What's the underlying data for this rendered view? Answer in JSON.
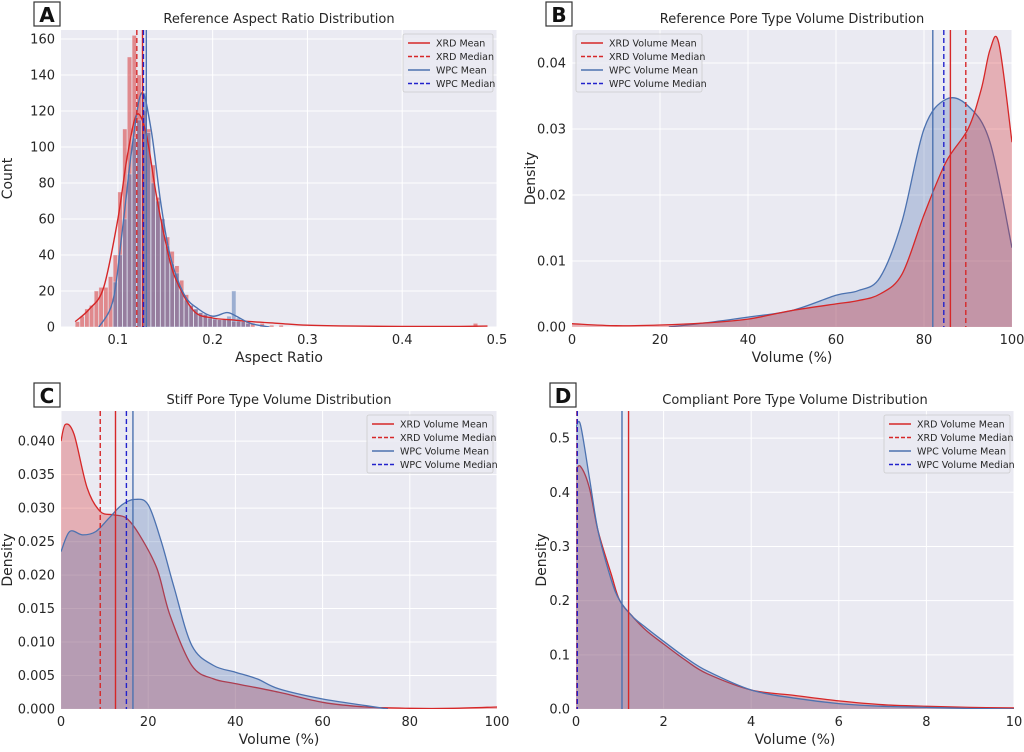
{
  "figure": {
    "panels": [
      {
        "letter": "A",
        "title": "Reference Aspect Ratio Distribution",
        "xlabel": "Aspect Ratio",
        "ylabel": "Count",
        "x_ticks": [
          "0.1",
          "0.2",
          "0.3",
          "0.4",
          "0.5"
        ],
        "y_ticks": [
          "0",
          "20",
          "40",
          "60",
          "80",
          "100",
          "120",
          "140",
          "160"
        ],
        "legend": [
          "XRD Mean",
          "XRD Median",
          "WPC Mean",
          "WPC Median"
        ]
      },
      {
        "letter": "B",
        "title": "Reference Pore Type Volume Distribution",
        "xlabel": "Volume (%)",
        "ylabel": "Density",
        "x_ticks": [
          "0",
          "20",
          "40",
          "60",
          "80",
          "100"
        ],
        "y_ticks": [
          "0.00",
          "0.01",
          "0.02",
          "0.03",
          "0.04"
        ],
        "legend": [
          "XRD Volume Mean",
          "XRD Volume Median",
          "WPC Volume Mean",
          "WPC Volume Median"
        ]
      },
      {
        "letter": "C",
        "title": "Stiff Pore Type Volume Distribution",
        "xlabel": "Volume (%)",
        "ylabel": "Density",
        "x_ticks": [
          "0",
          "20",
          "40",
          "60",
          "80",
          "100"
        ],
        "y_ticks": [
          "0.000",
          "0.005",
          "0.010",
          "0.015",
          "0.020",
          "0.025",
          "0.030",
          "0.035",
          "0.040"
        ],
        "legend": [
          "XRD Volume Mean",
          "XRD Volume Median",
          "WPC Volume Mean",
          "WPC Volume Median"
        ]
      },
      {
        "letter": "D",
        "title": "Compliant Pore Type Volume Distribution",
        "xlabel": "Volume (%)",
        "ylabel": "Density",
        "x_ticks": [
          "0",
          "2",
          "4",
          "6",
          "8",
          "10"
        ],
        "y_ticks": [
          "0.0",
          "0.1",
          "0.2",
          "0.3",
          "0.4",
          "0.5"
        ],
        "legend": [
          "XRD Volume Mean",
          "XRD Volume Median",
          "WPC Volume Mean",
          "WPC Volume Median"
        ]
      }
    ]
  },
  "chart_data": [
    {
      "type": "histogram",
      "panel": "A",
      "title": "Reference Aspect Ratio Distribution",
      "xlabel": "Aspect Ratio",
      "ylabel": "Count",
      "xlim": [
        0.04,
        0.5
      ],
      "ylim": [
        0,
        165
      ],
      "grid": true,
      "legend_position": "top-right",
      "colors": {
        "XRD": "#d62728",
        "WPC": "#4c72b0",
        "background": "#eaeaf2"
      },
      "series": [
        {
          "name": "XRD",
          "bin_width": 0.005,
          "bin_starts": [
            0.055,
            0.06,
            0.065,
            0.07,
            0.075,
            0.08,
            0.085,
            0.09,
            0.095,
            0.1,
            0.105,
            0.11,
            0.115,
            0.12,
            0.125,
            0.13,
            0.135,
            0.14,
            0.145,
            0.15,
            0.155,
            0.16,
            0.165,
            0.17,
            0.175,
            0.18,
            0.185,
            0.19,
            0.195,
            0.2,
            0.205,
            0.21,
            0.215,
            0.22,
            0.225,
            0.23,
            0.235,
            0.24,
            0.25,
            0.26,
            0.27,
            0.475
          ],
          "counts": [
            3,
            6,
            10,
            12,
            20,
            22,
            22,
            28,
            40,
            75,
            110,
            150,
            162,
            140,
            120,
            110,
            90,
            72,
            60,
            50,
            42,
            34,
            26,
            18,
            12,
            10,
            8,
            7,
            6,
            4,
            4,
            4,
            4,
            3,
            3,
            4,
            3,
            2,
            2,
            1,
            1,
            2
          ],
          "kde_x": [
            0.055,
            0.07,
            0.085,
            0.1,
            0.11,
            0.12,
            0.13,
            0.14,
            0.15,
            0.16,
            0.18,
            0.2,
            0.22,
            0.24,
            0.27,
            0.3,
            0.35,
            0.4,
            0.45,
            0.49
          ],
          "kde_y": [
            3,
            10,
            22,
            60,
            95,
            118,
            107,
            75,
            48,
            28,
            9,
            5,
            4,
            3,
            2,
            1,
            0.5,
            0.3,
            0.3,
            0.5
          ]
        },
        {
          "name": "WPC",
          "bin_width": 0.005,
          "bin_starts": [
            0.095,
            0.1,
            0.105,
            0.11,
            0.115,
            0.12,
            0.125,
            0.13,
            0.135,
            0.14,
            0.145,
            0.15,
            0.155,
            0.16,
            0.165,
            0.17,
            0.175,
            0.18,
            0.185,
            0.19,
            0.195,
            0.2,
            0.205,
            0.21,
            0.215,
            0.22,
            0.225,
            0.23,
            0.235
          ],
          "counts": [
            25,
            40,
            60,
            85,
            105,
            115,
            130,
            108,
            80,
            70,
            60,
            45,
            35,
            30,
            20,
            15,
            12,
            10,
            8,
            7,
            5,
            5,
            4,
            4,
            6,
            20,
            5,
            3,
            2
          ],
          "kde_x": [
            0.08,
            0.095,
            0.105,
            0.115,
            0.125,
            0.135,
            0.145,
            0.155,
            0.17,
            0.185,
            0.2,
            0.215,
            0.225,
            0.24,
            0.26
          ],
          "kde_y": [
            0,
            15,
            55,
            100,
            130,
            110,
            70,
            40,
            18,
            10,
            6,
            8,
            6,
            2,
            0
          ]
        }
      ],
      "vlines": [
        {
          "label": "XRD Mean",
          "x": 0.126,
          "style": "solid",
          "color": "#d62728"
        },
        {
          "label": "XRD Median",
          "x": 0.12,
          "style": "dashed",
          "color": "#d62728"
        },
        {
          "label": "WPC Mean",
          "x": 0.13,
          "style": "solid",
          "color": "#4c72b0"
        },
        {
          "label": "WPC Median",
          "x": 0.127,
          "style": "dashed",
          "color": "#2222cc"
        }
      ]
    },
    {
      "type": "area",
      "panel": "B",
      "title": "Reference Pore Type Volume Distribution",
      "xlabel": "Volume (%)",
      "ylabel": "Density",
      "xlim": [
        0,
        100
      ],
      "ylim": [
        0,
        0.045
      ],
      "grid": true,
      "legend_position": "top-left",
      "series": [
        {
          "name": "XRD",
          "x": [
            0,
            10,
            20,
            30,
            40,
            50,
            60,
            65,
            70,
            75,
            80,
            85,
            90,
            93,
            95,
            97,
            100
          ],
          "y": [
            0.0005,
            0.0002,
            0.0003,
            0.0006,
            0.0012,
            0.0025,
            0.0035,
            0.004,
            0.005,
            0.008,
            0.017,
            0.025,
            0.03,
            0.036,
            0.042,
            0.043,
            0.028
          ]
        },
        {
          "name": "WPC",
          "x": [
            22,
            30,
            40,
            50,
            60,
            65,
            70,
            75,
            80,
            85,
            90,
            95,
            100
          ],
          "y": [
            0,
            0.0006,
            0.0015,
            0.0025,
            0.0048,
            0.0055,
            0.0075,
            0.016,
            0.03,
            0.0345,
            0.0335,
            0.028,
            0.012
          ]
        }
      ],
      "vlines": [
        {
          "label": "XRD Volume Mean",
          "x": 86,
          "style": "solid",
          "color": "#d62728"
        },
        {
          "label": "XRD Volume Median",
          "x": 89.5,
          "style": "dashed",
          "color": "#d62728"
        },
        {
          "label": "WPC Volume Mean",
          "x": 82,
          "style": "solid",
          "color": "#4c72b0"
        },
        {
          "label": "WPC Volume Median",
          "x": 84.5,
          "style": "dashed",
          "color": "#2222cc"
        }
      ]
    },
    {
      "type": "area",
      "panel": "C",
      "title": "Stiff Pore Type Volume Distribution",
      "xlabel": "Volume (%)",
      "ylabel": "Density",
      "xlim": [
        0,
        100
      ],
      "ylim": [
        0,
        0.0445
      ],
      "grid": true,
      "legend_position": "top-right",
      "series": [
        {
          "name": "XRD",
          "x": [
            0,
            1,
            3,
            6,
            9,
            12,
            15,
            18,
            22,
            25,
            30,
            35,
            40,
            50,
            60,
            70,
            80,
            90,
            100
          ],
          "y": [
            0.04,
            0.0425,
            0.041,
            0.033,
            0.0295,
            0.029,
            0.0285,
            0.026,
            0.021,
            0.014,
            0.0065,
            0.0045,
            0.0038,
            0.0025,
            0.001,
            0.0003,
            0.0001,
            0.0001,
            0.0003
          ]
        },
        {
          "name": "WPC",
          "x": [
            0,
            2,
            5,
            8,
            11,
            14,
            17,
            20,
            23,
            26,
            30,
            35,
            40,
            45,
            50,
            60,
            70,
            75
          ],
          "y": [
            0.0235,
            0.0265,
            0.026,
            0.0265,
            0.0285,
            0.0305,
            0.0313,
            0.0305,
            0.025,
            0.018,
            0.0095,
            0.0065,
            0.0055,
            0.0045,
            0.003,
            0.0015,
            0.0005,
            0
          ]
        }
      ],
      "vlines": [
        {
          "label": "XRD Volume Mean",
          "x": 12.5,
          "style": "solid",
          "color": "#d62728"
        },
        {
          "label": "XRD Volume Median",
          "x": 9,
          "style": "dashed",
          "color": "#d62728"
        },
        {
          "label": "WPC Volume Mean",
          "x": 16.5,
          "style": "solid",
          "color": "#4c72b0"
        },
        {
          "label": "WPC Volume Median",
          "x": 15,
          "style": "dashed",
          "color": "#2222cc"
        }
      ]
    },
    {
      "type": "area",
      "panel": "D",
      "title": "Compliant Pore Type Volume Distribution",
      "xlabel": "Volume (%)",
      "ylabel": "Density",
      "xlim": [
        0,
        10
      ],
      "ylim": [
        0,
        0.55
      ],
      "grid": true,
      "legend_position": "top-right",
      "series": [
        {
          "name": "XRD",
          "x": [
            0,
            0.1,
            0.3,
            0.5,
            0.8,
            1,
            1.3,
            1.6,
            2,
            2.5,
            3,
            4,
            5,
            6,
            7,
            8,
            9,
            10
          ],
          "y": [
            0.44,
            0.448,
            0.41,
            0.33,
            0.25,
            0.2,
            0.17,
            0.145,
            0.12,
            0.09,
            0.065,
            0.035,
            0.025,
            0.015,
            0.008,
            0.005,
            0.003,
            0.002
          ]
        },
        {
          "name": "WPC",
          "x": [
            0,
            0.1,
            0.3,
            0.5,
            0.8,
            1,
            1.3,
            1.6,
            2,
            2.5,
            3,
            4,
            5,
            6,
            7,
            8,
            9,
            10
          ],
          "y": [
            0.52,
            0.525,
            0.43,
            0.33,
            0.24,
            0.2,
            0.17,
            0.15,
            0.125,
            0.095,
            0.07,
            0.035,
            0.02,
            0.01,
            0.005,
            0.003,
            0.001,
            0
          ]
        }
      ],
      "vlines": [
        {
          "label": "XRD Volume Mean",
          "x": 1.2,
          "style": "solid",
          "color": "#d62728"
        },
        {
          "label": "XRD Volume Median",
          "x": 0.02,
          "style": "dashed",
          "color": "#d62728"
        },
        {
          "label": "WPC Volume Mean",
          "x": 1.05,
          "style": "solid",
          "color": "#4c72b0"
        },
        {
          "label": "WPC Volume Median",
          "x": 0.03,
          "style": "dashed",
          "color": "#2222cc"
        }
      ]
    }
  ]
}
